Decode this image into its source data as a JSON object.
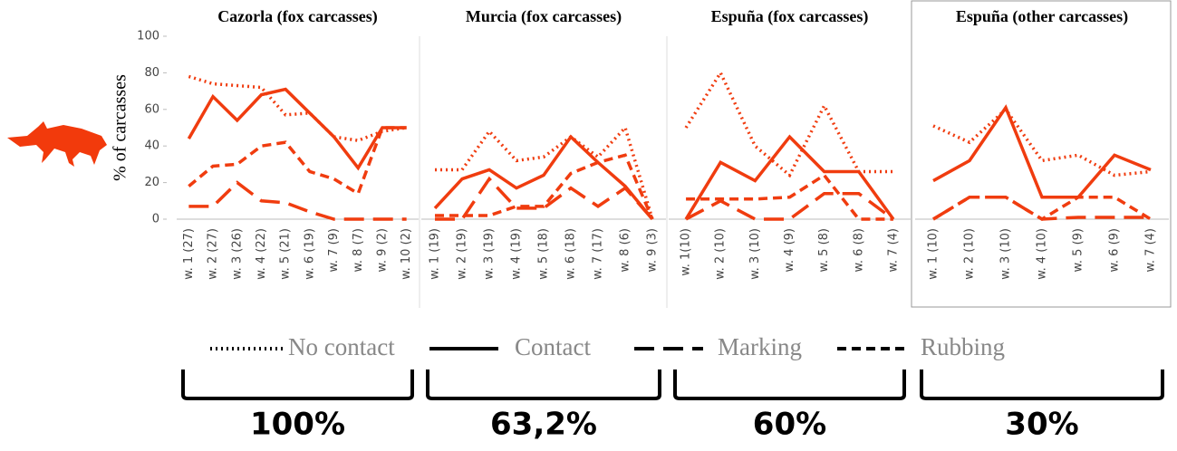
{
  "chart_data": [
    {
      "type": "line",
      "title": "Cazorla (fox carcasses)",
      "ylabel": "% of carcasses",
      "ylim": [
        0,
        100
      ],
      "yticks": [
        0,
        20,
        40,
        60,
        80,
        100
      ],
      "annotation": "100%",
      "categories": [
        "w. 1 (27)",
        "w. 2 (27)",
        "w. 3 (26)",
        "w. 4 (22)",
        "w. 5 (21)",
        "w. 6 (19)",
        "w. 7 (9)",
        "w. 8 (7)",
        "w. 9 (2)",
        "w. 10 (2)"
      ],
      "series": [
        {
          "name": "No contact",
          "color": "#f03c0f",
          "dash": "dotted",
          "values": [
            78,
            74,
            73,
            72,
            57,
            58,
            45,
            43,
            48,
            50
          ]
        },
        {
          "name": "Contact",
          "color": "#f03c0f",
          "dash": "solid",
          "values": [
            44,
            67,
            54,
            68,
            71,
            58,
            45,
            28,
            50,
            50
          ]
        },
        {
          "name": "Marking",
          "color": "#f03c0f",
          "dash": "long-dash",
          "values": [
            7,
            7,
            20,
            10,
            9,
            4,
            0,
            0,
            0,
            0
          ]
        },
        {
          "name": "Rubbing",
          "color": "#f03c0f",
          "dash": "dash",
          "values": [
            18,
            29,
            30,
            40,
            42,
            26,
            22,
            14,
            50,
            50
          ]
        }
      ]
    },
    {
      "type": "line",
      "title": "Murcia (fox carcasses)",
      "ylim": [
        0,
        100
      ],
      "annotation": "63,2%",
      "categories": [
        "w. 1 (19)",
        "w. 2 (19)",
        "w. 3 (19)",
        "w. 4 (19)",
        "w. 5 (18)",
        "w. 6 (18)",
        "w. 7 (17)",
        "w. 8 (6)",
        "w. 9 (3)"
      ],
      "series": [
        {
          "name": "No contact",
          "color": "#f03c0f",
          "dash": "dotted",
          "values": [
            27,
            27,
            48,
            32,
            34,
            45,
            34,
            50,
            0
          ]
        },
        {
          "name": "Contact",
          "color": "#f03c0f",
          "dash": "solid",
          "values": [
            6,
            22,
            27,
            17,
            24,
            45,
            31,
            18,
            0
          ]
        },
        {
          "name": "Marking",
          "color": "#f03c0f",
          "dash": "long-dash",
          "values": [
            0,
            0,
            22,
            6,
            6,
            17,
            7,
            17,
            0
          ]
        },
        {
          "name": "Rubbing",
          "color": "#f03c0f",
          "dash": "dash",
          "values": [
            2,
            2,
            2,
            7,
            7,
            25,
            31,
            35,
            0
          ]
        }
      ]
    },
    {
      "type": "line",
      "title": "Espuña (fox carcasses)",
      "ylim": [
        0,
        100
      ],
      "annotation": "60%",
      "categories": [
        "w. 1(10)",
        "w. 2 (10)",
        "w. 3 (10)",
        "w. 4 (9)",
        "w. 5 (8)",
        "w. 6 (8)",
        "w. 7 (4)"
      ],
      "series": [
        {
          "name": "No contact",
          "color": "#f03c0f",
          "dash": "dotted",
          "values": [
            50,
            80,
            40,
            24,
            62,
            26,
            26
          ]
        },
        {
          "name": "Contact",
          "color": "#f03c0f",
          "dash": "solid",
          "values": [
            0,
            31,
            21,
            45,
            26,
            26,
            0
          ]
        },
        {
          "name": "Marking",
          "color": "#f03c0f",
          "dash": "long-dash",
          "values": [
            0,
            10,
            0,
            0,
            14,
            14,
            0
          ]
        },
        {
          "name": "Rubbing",
          "color": "#f03c0f",
          "dash": "dash",
          "values": [
            11,
            11,
            11,
            12,
            24,
            0,
            0
          ]
        }
      ]
    },
    {
      "type": "line",
      "title": "Espuña (other carcasses)",
      "ylim": [
        0,
        100
      ],
      "annotation": "30%",
      "border": true,
      "categories": [
        "w. 1 (10)",
        "w. 2 (10)",
        "w. 3 (10)",
        "w. 4 (10)",
        "w. 5 (9)",
        "w. 6 (9)",
        "w. 7 (4)"
      ],
      "series": [
        {
          "name": "No contact",
          "color": "#f03c0f",
          "dash": "dotted",
          "values": [
            51,
            42,
            60,
            32,
            35,
            24,
            26
          ]
        },
        {
          "name": "Contact",
          "color": "#f03c0f",
          "dash": "solid",
          "values": [
            21,
            32,
            61,
            12,
            12,
            35,
            27
          ]
        },
        {
          "name": "Marking",
          "color": "#f03c0f",
          "dash": "long-dash",
          "values": [
            0,
            12,
            12,
            0,
            1,
            1,
            1
          ]
        },
        {
          "name": "Rubbing",
          "color": "#f03c0f",
          "dash": "dash",
          "values": [
            0,
            12,
            12,
            0,
            12,
            12,
            0
          ]
        }
      ]
    }
  ]
}
